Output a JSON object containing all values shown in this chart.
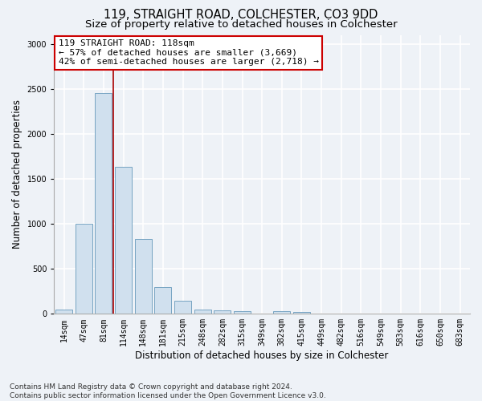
{
  "title": "119, STRAIGHT ROAD, COLCHESTER, CO3 9DD",
  "subtitle": "Size of property relative to detached houses in Colchester",
  "xlabel": "Distribution of detached houses by size in Colchester",
  "ylabel": "Number of detached properties",
  "categories": [
    "14sqm",
    "47sqm",
    "81sqm",
    "114sqm",
    "148sqm",
    "181sqm",
    "215sqm",
    "248sqm",
    "282sqm",
    "315sqm",
    "349sqm",
    "382sqm",
    "415sqm",
    "449sqm",
    "482sqm",
    "516sqm",
    "549sqm",
    "583sqm",
    "616sqm",
    "650sqm",
    "683sqm"
  ],
  "values": [
    50,
    1000,
    2450,
    1630,
    830,
    300,
    150,
    50,
    40,
    30,
    0,
    30,
    20,
    0,
    0,
    0,
    0,
    0,
    0,
    0,
    0
  ],
  "bar_color": "#d0e0ee",
  "bar_edgecolor": "#6699bb",
  "vline_x": 2.5,
  "vline_color": "#aa0000",
  "ylim": [
    0,
    3100
  ],
  "yticks": [
    0,
    500,
    1000,
    1500,
    2000,
    2500,
    3000
  ],
  "annotation_text": "119 STRAIGHT ROAD: 118sqm\n← 57% of detached houses are smaller (3,669)\n42% of semi-detached houses are larger (2,718) →",
  "annotation_box_facecolor": "#ffffff",
  "annotation_box_edgecolor": "#cc0000",
  "footer_line1": "Contains HM Land Registry data © Crown copyright and database right 2024.",
  "footer_line2": "Contains public sector information licensed under the Open Government Licence v3.0.",
  "bg_color": "#eef2f7",
  "grid_color": "#ffffff",
  "title_fontsize": 10.5,
  "subtitle_fontsize": 9.5,
  "tick_fontsize": 7,
  "ylabel_fontsize": 8.5,
  "xlabel_fontsize": 8.5,
  "annotation_fontsize": 8,
  "footer_fontsize": 6.5
}
